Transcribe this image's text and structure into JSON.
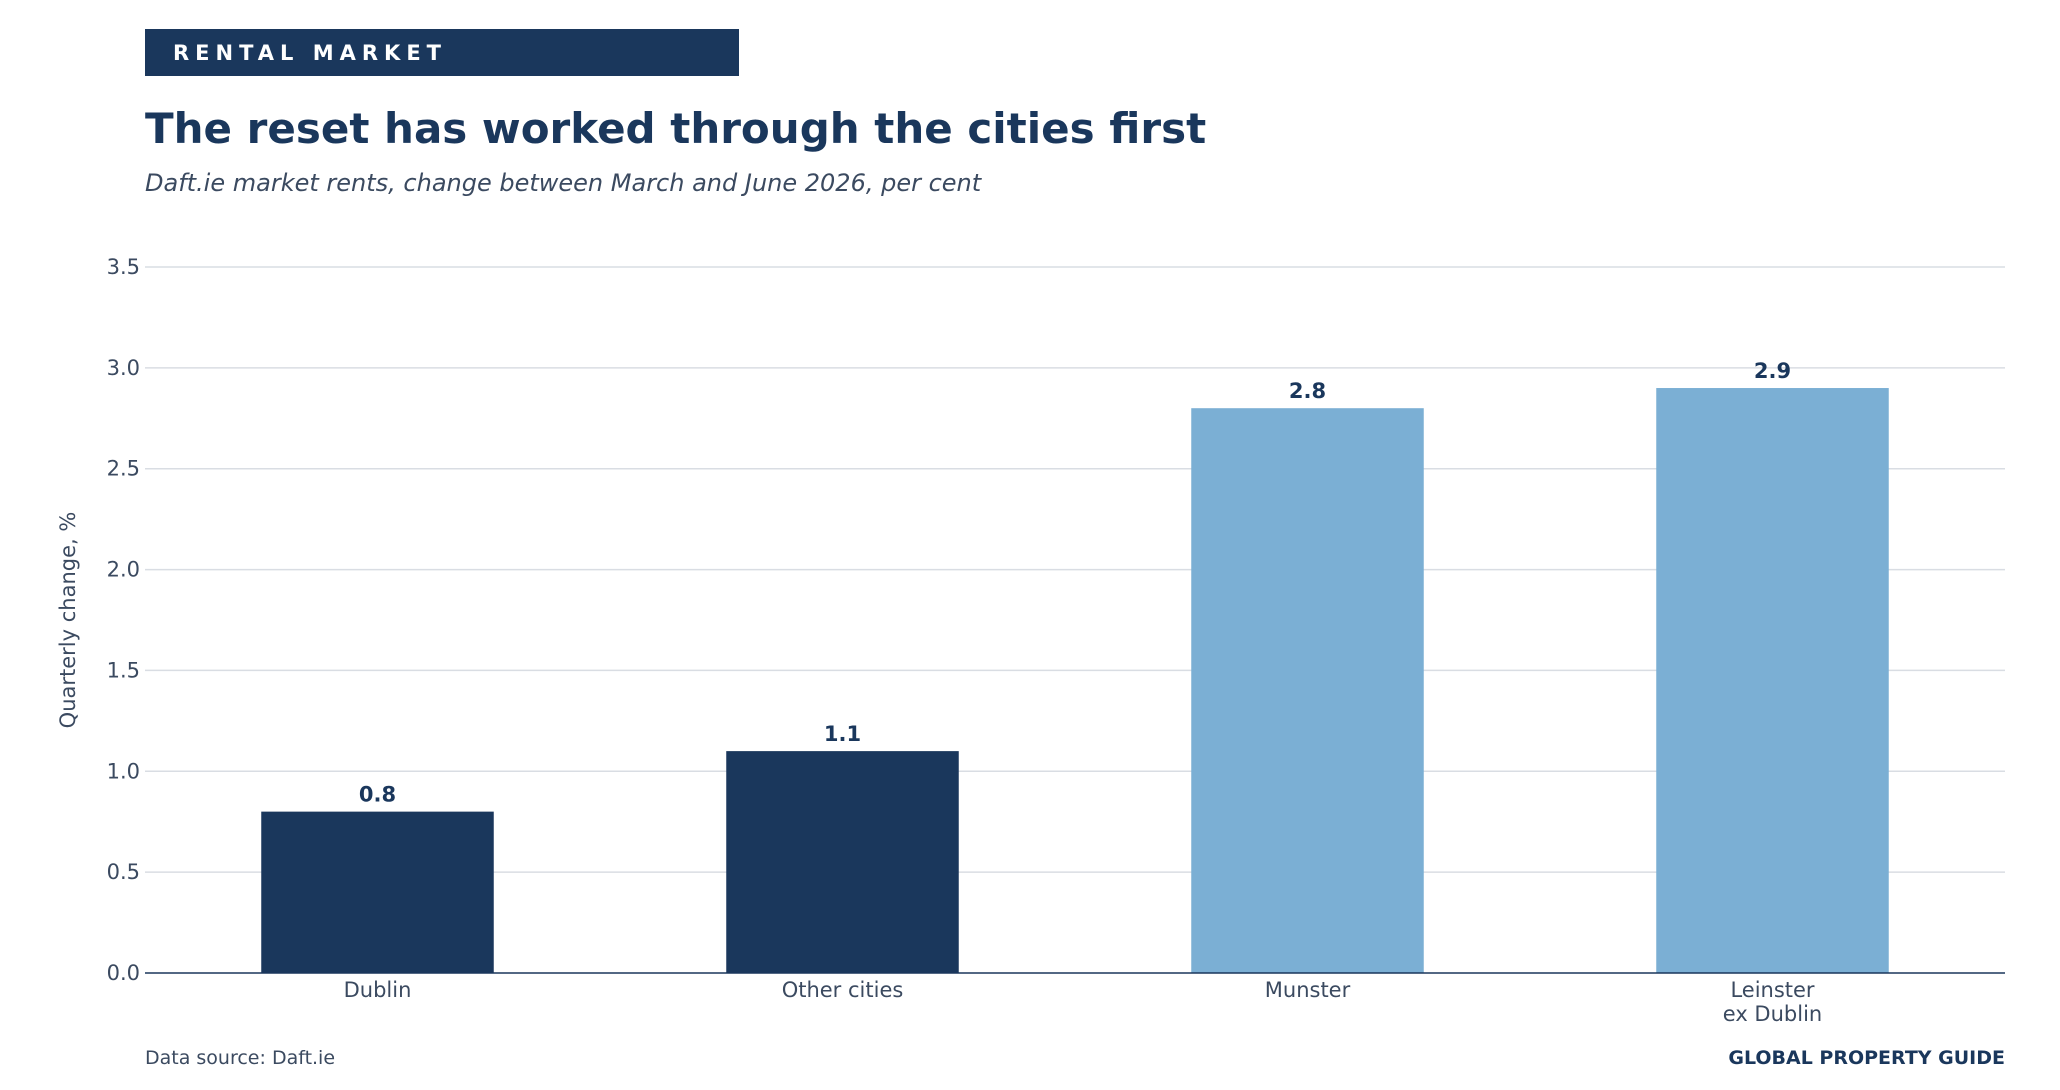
{
  "header": {
    "kicker": "RENTAL MARKET",
    "title": "The reset has worked through the cities first",
    "subtitle": "Daft.ie market rents, change between March and June 2026, per cent"
  },
  "footer": {
    "source": "Data source: Daft.ie",
    "brand": "GLOBAL PROPERTY GUIDE"
  },
  "colors": {
    "dark_bar": "#1a375c",
    "light_bar": "#7bafd4",
    "gridline": "#d9dde3",
    "axis_text": "#3b4a60"
  },
  "chart_data": {
    "type": "bar",
    "categories": [
      "Dublin",
      "Other cities",
      "Munster",
      "Leinster\nex Dublin"
    ],
    "values": [
      0.8,
      1.1,
      2.8,
      2.9
    ],
    "data_labels": [
      "0.8",
      "1.1",
      "2.8",
      "2.9"
    ],
    "bar_colors": [
      "#1a375c",
      "#1a375c",
      "#7bafd4",
      "#7bafd4"
    ],
    "title": "The reset has worked through the cities first",
    "subtitle": "Daft.ie market rents, change between March and June 2026, per cent",
    "xlabel": "",
    "ylabel": "Quarterly change, %",
    "ylim": [
      0,
      3.5
    ],
    "yticks": [
      0.0,
      0.5,
      1.0,
      1.5,
      2.0,
      2.5,
      3.0,
      3.5
    ],
    "ytick_labels": [
      "0.0",
      "0.5",
      "1.0",
      "1.5",
      "2.0",
      "2.5",
      "3.0",
      "3.5"
    ],
    "grid": "horizontal",
    "legend": "none"
  }
}
